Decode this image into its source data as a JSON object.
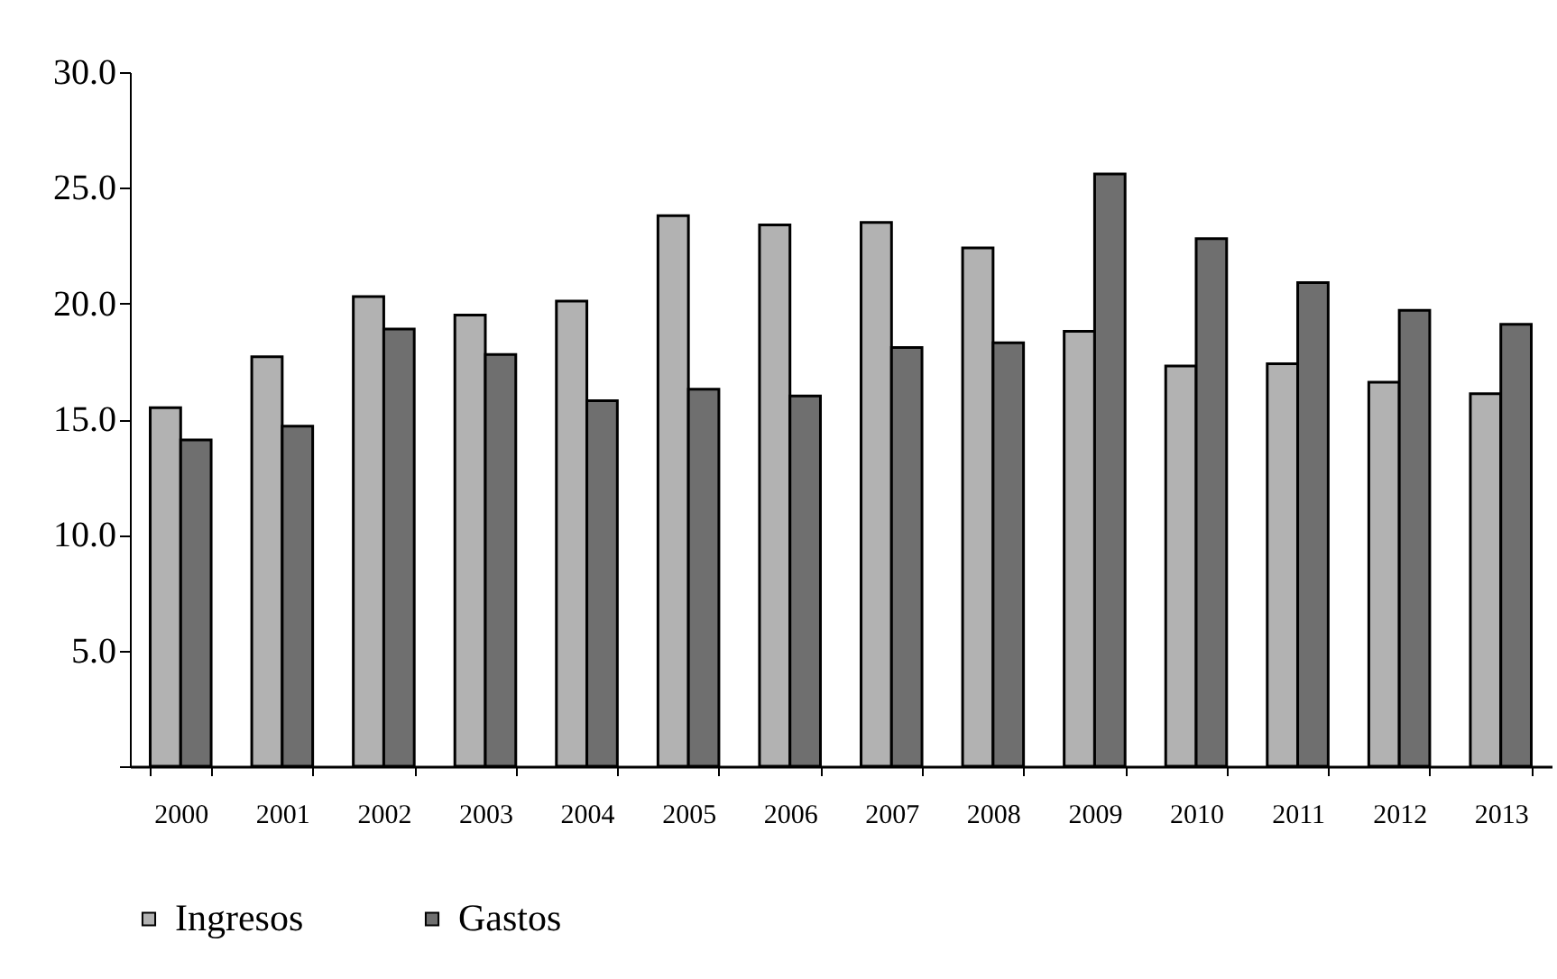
{
  "chart_data": {
    "type": "bar",
    "categories": [
      "2000",
      "2001",
      "2002",
      "2003",
      "2004",
      "2005",
      "2006",
      "2007",
      "2008",
      "2009",
      "2010",
      "2011",
      "2012",
      "2013"
    ],
    "series": [
      {
        "name": "Ingresos",
        "color": "#b2b2b2",
        "values": [
          15.5,
          17.7,
          20.3,
          19.5,
          20.1,
          23.8,
          23.4,
          23.5,
          22.4,
          18.8,
          17.3,
          17.4,
          16.6,
          16.1
        ]
      },
      {
        "name": "Gastos",
        "color": "#6f6f6f",
        "values": [
          14.1,
          14.7,
          18.9,
          17.8,
          15.8,
          16.3,
          16.0,
          18.1,
          18.3,
          25.6,
          22.8,
          20.9,
          19.7,
          19.1
        ]
      }
    ],
    "ylim": [
      0,
      30
    ],
    "yticks": [
      {
        "value": 0,
        "label": null
      },
      {
        "value": 5,
        "label": "5.0"
      },
      {
        "value": 10,
        "label": "10.0"
      },
      {
        "value": 15,
        "label": "15.0"
      },
      {
        "value": 20,
        "label": "20.0"
      },
      {
        "value": 25,
        "label": "25.0"
      },
      {
        "value": 30,
        "label": "30.0"
      }
    ],
    "grid": false,
    "legend": "bottom"
  }
}
